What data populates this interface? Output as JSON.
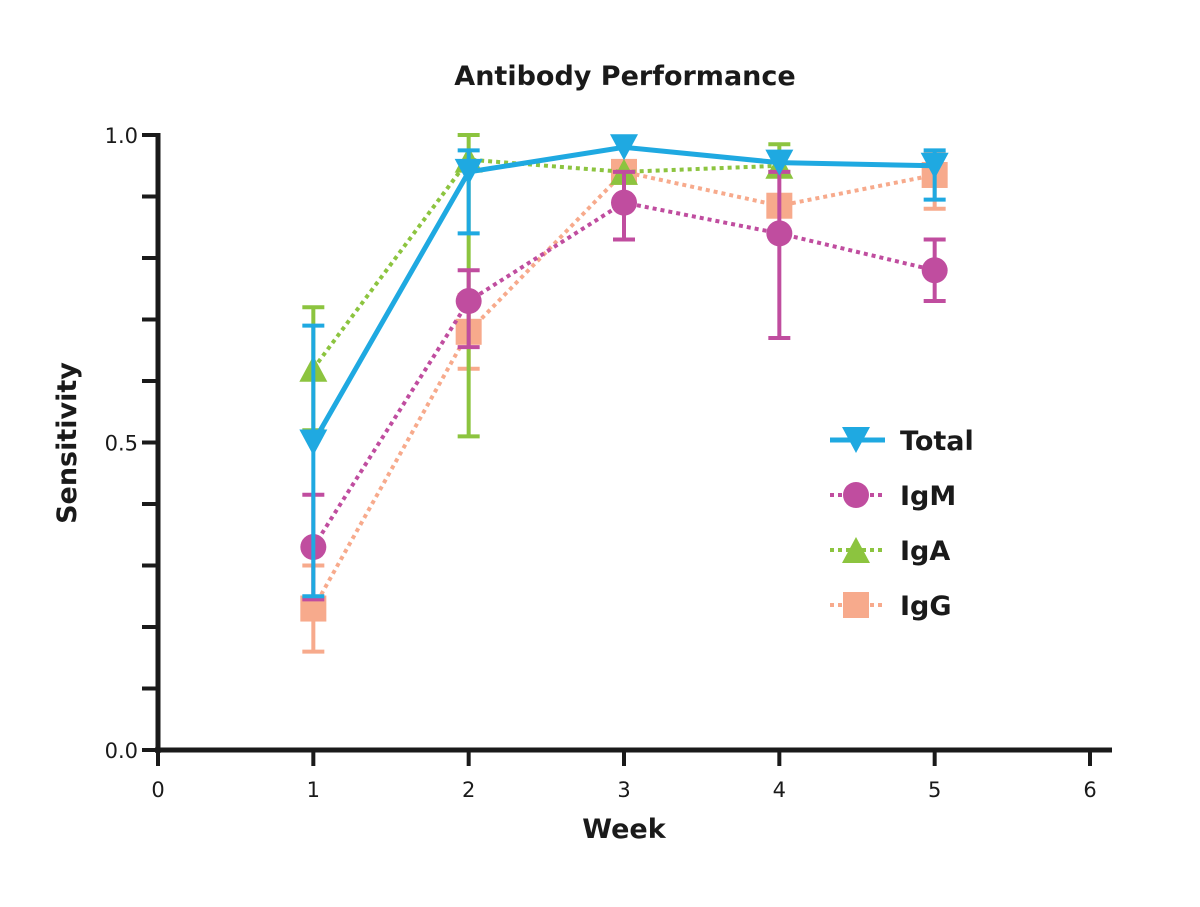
{
  "chart_data": {
    "type": "line",
    "title": "Antibody Performance",
    "xlabel": "Week",
    "ylabel": "Sensitivity",
    "xlim": [
      0,
      6
    ],
    "ylim": [
      0,
      1.0
    ],
    "x_ticks": [
      "0",
      "1",
      "2",
      "3",
      "4",
      "5",
      "6"
    ],
    "y_ticks": [
      "0.0",
      "0.5",
      "1.0"
    ],
    "y_minor_step": 0.1,
    "grid": false,
    "legend_position": "right",
    "series": [
      {
        "name": "Total",
        "color": "#1fa9e1",
        "marker": "triangle-down",
        "line": "solid",
        "points": [
          {
            "x": 1,
            "y": 0.5,
            "lo": 0.25,
            "hi": 0.69
          },
          {
            "x": 2,
            "y": 0.94,
            "lo": 0.84,
            "hi": 0.975
          },
          {
            "x": 3,
            "y": 0.98
          },
          {
            "x": 4,
            "y": 0.955
          },
          {
            "x": 5,
            "y": 0.95,
            "lo": 0.895,
            "hi": 0.975
          }
        ]
      },
      {
        "name": "IgM",
        "color": "#c04d9f",
        "marker": "circle",
        "line": "dotted",
        "points": [
          {
            "x": 1,
            "y": 0.33,
            "lo": 0.245,
            "hi": 0.415
          },
          {
            "x": 2,
            "y": 0.73,
            "lo": 0.655,
            "hi": 0.78
          },
          {
            "x": 3,
            "y": 0.89,
            "lo": 0.83,
            "hi": 0.94
          },
          {
            "x": 4,
            "y": 0.84,
            "lo": 0.67,
            "hi": 0.94
          },
          {
            "x": 5,
            "y": 0.78,
            "lo": 0.73,
            "hi": 0.83
          }
        ]
      },
      {
        "name": "IgA",
        "color": "#8cc43f",
        "marker": "triangle-up",
        "line": "dotted",
        "points": [
          {
            "x": 1,
            "y": 0.62,
            "lo": 0.52,
            "hi": 0.72
          },
          {
            "x": 2,
            "y": 0.96,
            "lo": 0.51,
            "hi": 1.0
          },
          {
            "x": 3,
            "y": 0.94
          },
          {
            "x": 4,
            "y": 0.95,
            "lo": 0.94,
            "hi": 0.985
          }
        ]
      },
      {
        "name": "IgG",
        "color": "#f7aa8c",
        "marker": "square",
        "line": "dotted",
        "points": [
          {
            "x": 1,
            "y": 0.23,
            "lo": 0.16,
            "hi": 0.3
          },
          {
            "x": 2,
            "y": 0.68,
            "lo": 0.62,
            "hi": 0.74
          },
          {
            "x": 3,
            "y": 0.94
          },
          {
            "x": 4,
            "y": 0.885
          },
          {
            "x": 5,
            "y": 0.935,
            "lo": 0.88,
            "hi": 0.97
          }
        ]
      }
    ]
  }
}
